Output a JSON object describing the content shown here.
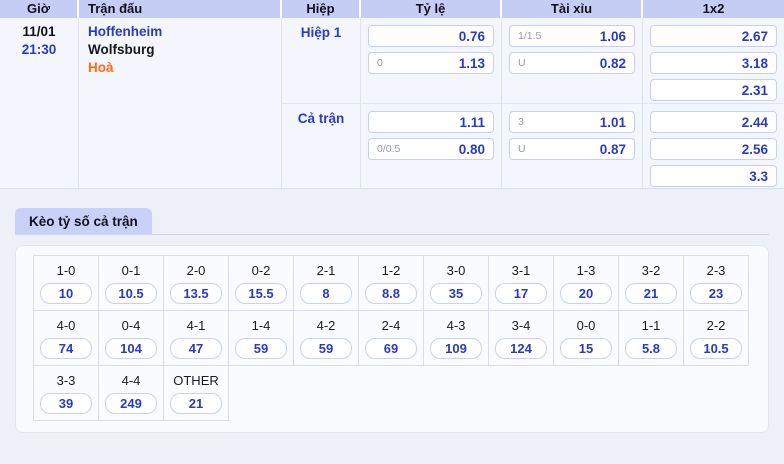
{
  "colors": {
    "accent_blue": "#2b3ac6",
    "draw_orange": "#ff6a13",
    "header_bg": "#c5cdf4",
    "tab_bg": "#c9d1f8"
  },
  "match_table": {
    "headers": {
      "time": "Giờ",
      "match": "Trận đấu",
      "half": "Hiệp",
      "odds": "Tỷ lệ",
      "over_under": "Tài xỉu",
      "one_x_two": "1x2"
    },
    "match": {
      "date": "11/01",
      "time": "21:30",
      "home_team": "Hoffenheim",
      "away_team": "Wolfsburg",
      "draw_label": "Hoà"
    },
    "sections": [
      {
        "label": "Hiệp 1",
        "handicap": [
          {
            "line": "",
            "odds": "0.76"
          },
          {
            "line": "0",
            "odds": "1.13"
          }
        ],
        "over_under": [
          {
            "line": "1/1.5",
            "odds": "1.06"
          },
          {
            "line": "U",
            "odds": "0.82"
          }
        ],
        "one_x_two": [
          "2.67",
          "3.18",
          "2.31"
        ]
      },
      {
        "label": "Cả trận",
        "handicap": [
          {
            "line": "",
            "odds": "1.11"
          },
          {
            "line": "0/0.5",
            "odds": "0.80"
          }
        ],
        "over_under": [
          {
            "line": "3",
            "odds": "1.01"
          },
          {
            "line": "U",
            "odds": "0.87"
          }
        ],
        "one_x_two": [
          "2.44",
          "2.56",
          "3.3"
        ]
      }
    ]
  },
  "correct_score": {
    "tab_label": "Kèo tỷ số cả trận",
    "columns": 11,
    "rows": [
      [
        {
          "score": "1-0",
          "odds": "10"
        },
        {
          "score": "0-1",
          "odds": "10.5"
        },
        {
          "score": "2-0",
          "odds": "13.5"
        },
        {
          "score": "0-2",
          "odds": "15.5"
        },
        {
          "score": "2-1",
          "odds": "8"
        },
        {
          "score": "1-2",
          "odds": "8.8"
        },
        {
          "score": "3-0",
          "odds": "35"
        },
        {
          "score": "3-1",
          "odds": "17"
        },
        {
          "score": "1-3",
          "odds": "20"
        },
        {
          "score": "3-2",
          "odds": "21"
        },
        {
          "score": "2-3",
          "odds": "23"
        }
      ],
      [
        {
          "score": "4-0",
          "odds": "74"
        },
        {
          "score": "0-4",
          "odds": "104"
        },
        {
          "score": "4-1",
          "odds": "47"
        },
        {
          "score": "1-4",
          "odds": "59"
        },
        {
          "score": "4-2",
          "odds": "59"
        },
        {
          "score": "2-4",
          "odds": "69"
        },
        {
          "score": "4-3",
          "odds": "109"
        },
        {
          "score": "3-4",
          "odds": "124"
        },
        {
          "score": "0-0",
          "odds": "15"
        },
        {
          "score": "1-1",
          "odds": "5.8"
        },
        {
          "score": "2-2",
          "odds": "10.5"
        }
      ],
      [
        {
          "score": "3-3",
          "odds": "39"
        },
        {
          "score": "4-4",
          "odds": "249"
        },
        {
          "score": "OTHER",
          "odds": "21"
        }
      ]
    ]
  }
}
